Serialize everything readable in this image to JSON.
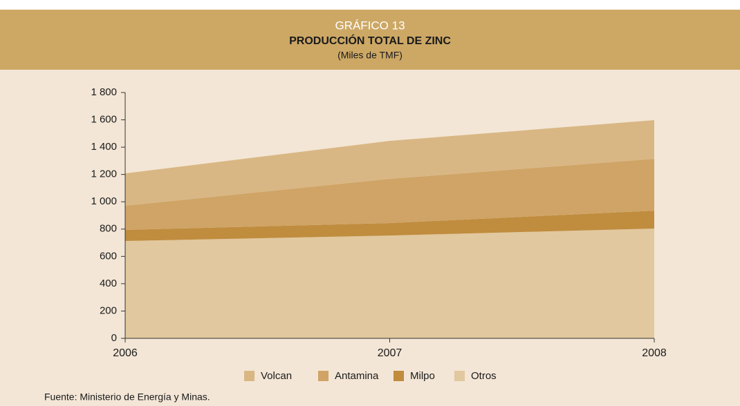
{
  "chart_data": {
    "type": "stacked-area",
    "header": "GRÁFICO 13",
    "title": "PRODUCCIÓN TOTAL DE ZINC",
    "subtitle": "(Miles de TMF)",
    "source": "Fuente: Ministerio de Energía y Minas.",
    "categories": [
      "2006",
      "2007",
      "2008"
    ],
    "series": [
      {
        "name": "Volcan",
        "color": "#d9b784",
        "values": [
          237,
          278,
          284
        ]
      },
      {
        "name": "Antamina",
        "color": "#cfa466",
        "values": [
          177,
          324,
          379
        ]
      },
      {
        "name": "Milpo",
        "color": "#c08c3e",
        "values": [
          81,
          91,
          131
        ]
      },
      {
        "name": "Otros",
        "color": "#e1c89e",
        "values": [
          713,
          753,
          804
        ]
      }
    ],
    "ylim": [
      0,
      1800
    ],
    "yticks": [
      0,
      200,
      400,
      600,
      800,
      {
        "value": 1000,
        "label": "1 000"
      },
      {
        "value": 1200,
        "label": "1 200"
      },
      {
        "value": 1400,
        "label": "1 400"
      },
      {
        "value": 1600,
        "label": "1 600"
      },
      {
        "value": 1800,
        "label": "1 800"
      }
    ]
  }
}
